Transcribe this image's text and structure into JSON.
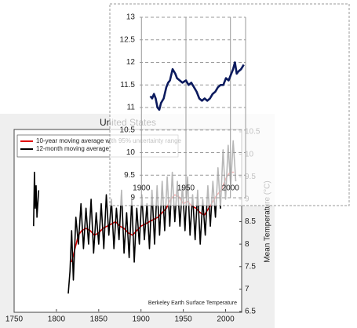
{
  "chart_data": [
    {
      "type": "line",
      "title": "United States",
      "y_label": "Mean Temperature (°C)",
      "annotation": "Berkeley Earth Surface Temperature",
      "legend": "top-left",
      "grid": false,
      "xlim": [
        1750,
        2019
      ],
      "xticks": [
        1750,
        1800,
        1850,
        1900,
        1950,
        2000
      ],
      "ylim": [
        6.5,
        10.5
      ],
      "yticks": [
        6.5,
        7,
        7.5,
        8,
        8.5,
        9,
        9.5,
        10,
        10.5
      ],
      "series": [
        {
          "name": "10-year moving average with 95% uncertainty range",
          "color": "#e00000",
          "x": [
            1818,
            1822,
            1826,
            1830,
            1835,
            1840,
            1845,
            1850,
            1855,
            1860,
            1865,
            1870,
            1875,
            1880,
            1885,
            1890,
            1895,
            1900,
            1905,
            1910,
            1915,
            1920,
            1925,
            1930,
            1935,
            1940,
            1945,
            1950,
            1955,
            1960,
            1965,
            1970,
            1975,
            1980,
            1985,
            1990,
            1995,
            2000,
            2005,
            2010
          ],
          "values": [
            7.6,
            7.9,
            8.2,
            8.3,
            8.35,
            8.3,
            8.2,
            8.25,
            8.35,
            8.4,
            8.45,
            8.5,
            8.4,
            8.35,
            8.25,
            8.2,
            8.3,
            8.4,
            8.45,
            8.5,
            8.55,
            8.6,
            8.7,
            8.8,
            9.0,
            9.1,
            9.05,
            8.9,
            8.95,
            8.85,
            8.8,
            8.7,
            8.65,
            8.8,
            8.95,
            9.1,
            9.2,
            9.45,
            9.6,
            9.6
          ]
        },
        {
          "name": "12-month moving average",
          "color": "#000000",
          "x": [
            1773,
            1774,
            1775,
            1776,
            1777,
            1779,
            1812,
            1814,
            1816,
            1818,
            1820,
            1823,
            1826,
            1829,
            1832,
            1835,
            1838,
            1841,
            1844,
            1847,
            1850,
            1853,
            1856,
            1859,
            1862,
            1865,
            1868,
            1871,
            1874,
            1877,
            1880,
            1883,
            1886,
            1889,
            1892,
            1895,
            1898,
            1901,
            1904,
            1907,
            1910,
            1913,
            1916,
            1919,
            1922,
            1925,
            1928,
            1931,
            1934,
            1937,
            1940,
            1943,
            1946,
            1949,
            1952,
            1955,
            1958,
            1961,
            1964,
            1967,
            1970,
            1973,
            1976,
            1979,
            1982,
            1985,
            1988,
            1991,
            1994,
            1997,
            2000,
            2003,
            2006,
            2009,
            2012
          ],
          "values": [
            8.4,
            9.6,
            8.8,
            9.3,
            8.6,
            9.2,
            null,
            6.9,
            7.4,
            8.3,
            7.2,
            8.6,
            8.0,
            8.9,
            7.9,
            8.8,
            8.0,
            9.0,
            7.8,
            8.7,
            8.0,
            8.9,
            7.9,
            9.1,
            8.2,
            9.0,
            7.9,
            8.8,
            8.1,
            9.2,
            7.8,
            8.7,
            7.7,
            9.0,
            7.6,
            8.8,
            8.0,
            9.1,
            8.1,
            8.9,
            7.9,
            9.2,
            8.0,
            9.3,
            8.2,
            9.4,
            8.3,
            9.5,
            8.4,
            9.6,
            8.5,
            9.4,
            8.4,
            9.3,
            8.3,
            9.5,
            8.2,
            9.1,
            8.1,
            9.2,
            8.0,
            9.0,
            8.2,
            9.3,
            8.4,
            9.4,
            8.6,
            9.7,
            8.8,
            10.1,
            9.0,
            10.2,
            9.3,
            10.3,
            9.4
          ]
        }
      ]
    },
    {
      "type": "line",
      "grid": true,
      "xlim": [
        1898,
        2017
      ],
      "xticks": [
        1900,
        1950,
        2000
      ],
      "ylim": [
        9,
        13
      ],
      "yticks": [
        9,
        9.5,
        10,
        10.5,
        11,
        11.5,
        12,
        12.5,
        13
      ],
      "series": [
        {
          "color": "#0b1a5e",
          "x": [
            1910,
            1912,
            1914,
            1916,
            1918,
            1920,
            1922,
            1925,
            1928,
            1930,
            1932,
            1935,
            1938,
            1940,
            1943,
            1946,
            1950,
            1953,
            1956,
            1959,
            1962,
            1965,
            1968,
            1971,
            1974,
            1977,
            1980,
            1983,
            1986,
            1989,
            1992,
            1995,
            1998,
            2001,
            2003,
            2005,
            2007,
            2009,
            2012,
            2015
          ],
          "values": [
            11.25,
            11.2,
            11.3,
            11.2,
            11.0,
            10.95,
            11.1,
            11.2,
            11.45,
            11.55,
            11.6,
            11.85,
            11.75,
            11.65,
            11.6,
            11.55,
            11.6,
            11.5,
            11.55,
            11.45,
            11.35,
            11.2,
            11.15,
            11.2,
            11.15,
            11.2,
            11.3,
            11.35,
            11.45,
            11.5,
            11.5,
            11.65,
            11.6,
            11.75,
            11.85,
            12.0,
            11.75,
            11.8,
            11.85,
            11.95
          ]
        }
      ]
    }
  ]
}
